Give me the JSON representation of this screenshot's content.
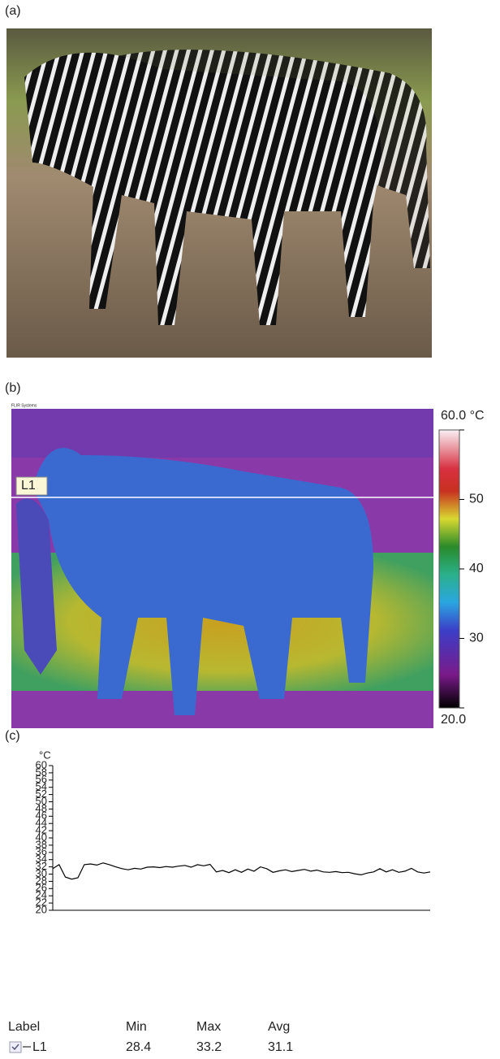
{
  "panel_labels": [
    "(a)",
    "(b)",
    "(c)"
  ],
  "thermal": {
    "brand": "FLIR Systems",
    "line_label": "L1",
    "colorbar": {
      "lim": [
        20,
        60
      ],
      "ticks": [
        {
          "value": 60,
          "label": "60.0 °C"
        },
        50,
        40,
        30,
        {
          "value": 20,
          "label": "20.0"
        }
      ]
    }
  },
  "chart_data": {
    "type": "line",
    "y_label": "°C",
    "color": "#000000",
    "ylim": [
      20,
      60
    ],
    "yticks": [
      20,
      22,
      24,
      26,
      28,
      30,
      32,
      34,
      36,
      38,
      40,
      42,
      44,
      46,
      48,
      50,
      52,
      54,
      56,
      58,
      60
    ],
    "values": [
      31.5,
      32.6,
      29.2,
      28.6,
      29.0,
      32.6,
      32.8,
      32.5,
      33.1,
      32.6,
      32.0,
      31.5,
      31.2,
      31.6,
      31.4,
      31.9,
      32.0,
      31.8,
      32.1,
      31.9,
      32.2,
      32.4,
      31.9,
      32.6,
      32.3,
      32.7,
      30.6,
      31.0,
      30.4,
      31.2,
      30.5,
      31.4,
      30.8,
      32.0,
      31.5,
      30.5,
      30.9,
      31.2,
      30.7,
      31.0,
      31.3,
      30.8,
      31.1,
      30.6,
      30.5,
      30.7,
      30.4,
      30.5,
      30.1,
      29.8,
      30.3,
      30.6,
      31.5,
      30.6,
      31.2,
      30.5,
      30.8,
      31.6,
      30.6,
      30.3,
      30.6
    ]
  },
  "table": {
    "header": [
      "Label",
      "Min",
      "Max",
      "Avg"
    ],
    "rows": [
      [
        "L1",
        "28.4",
        "33.2",
        "31.1"
      ]
    ]
  }
}
